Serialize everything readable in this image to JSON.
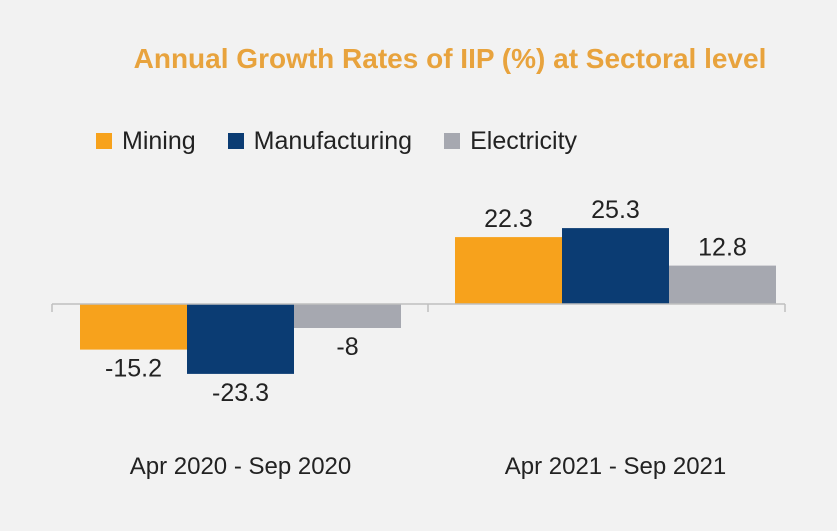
{
  "chart_data": {
    "type": "bar",
    "title": "Annual Growth Rates of IIP (%) at Sectoral level",
    "categories": [
      "Apr 2020 - Sep 2020",
      "Apr 2021 - Sep 2021"
    ],
    "series": [
      {
        "name": "Mining",
        "color": "#f7a21c",
        "values": [
          -15.2,
          22.3
        ]
      },
      {
        "name": "Manufacturing",
        "color": "#0b3c73",
        "values": [
          -23.3,
          25.3
        ]
      },
      {
        "name": "Electricity",
        "color": "#a6a8b0",
        "values": [
          -8,
          12.8
        ]
      }
    ],
    "data_labels": [
      [
        "-15.2",
        "22.3"
      ],
      [
        "-23.3",
        "25.3"
      ],
      [
        "-8",
        "12.8"
      ]
    ],
    "legend": "top",
    "grid": false,
    "ylim": [
      -30,
      30
    ]
  }
}
